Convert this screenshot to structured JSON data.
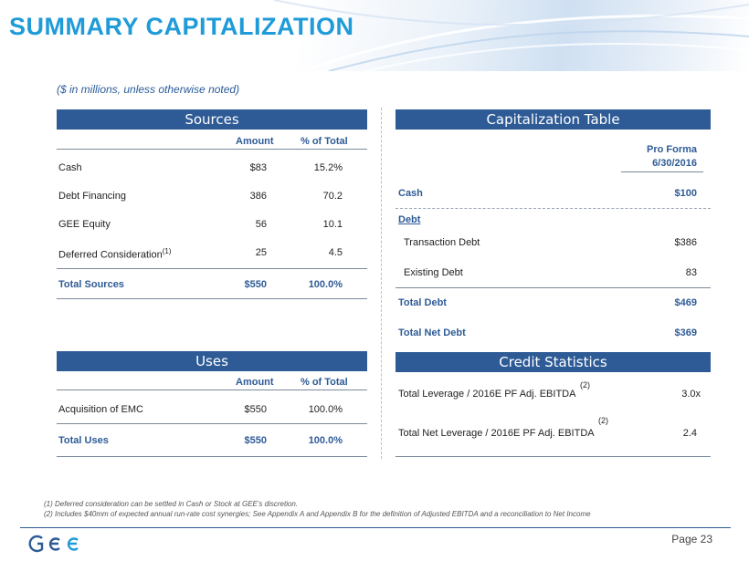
{
  "header": {
    "title": "SUMMARY CAPITALIZATION",
    "subtitle": "($ in millions, unless otherwise noted)"
  },
  "sources": {
    "title": "Sources",
    "col_amount": "Amount",
    "col_pct": "% of Total",
    "rows": [
      {
        "label": "Cash",
        "note": "",
        "amount": "$83",
        "pct": "15.2%"
      },
      {
        "label": "Debt Financing",
        "note": "",
        "amount": "386",
        "pct": "70.2"
      },
      {
        "label": "GEE Equity",
        "note": "",
        "amount": "56",
        "pct": "10.1"
      },
      {
        "label": "Deferred Consideration",
        "note": "(1)",
        "amount": "25",
        "pct": "4.5"
      }
    ],
    "total": {
      "label": "Total Sources",
      "amount": "$550",
      "pct": "100.0%"
    }
  },
  "uses": {
    "title": "Uses",
    "col_amount": "Amount",
    "col_pct": "% of Total",
    "rows": [
      {
        "label": "Acquisition of EMC",
        "amount": "$550",
        "pct": "100.0%"
      }
    ],
    "total": {
      "label": "Total Uses",
      "amount": "$550",
      "pct": "100.0%"
    }
  },
  "capitalization": {
    "title": "Capitalization Table",
    "col_line1": "Pro Forma",
    "col_line2": "6/30/2016",
    "cash_label": "Cash",
    "cash_value": "$100",
    "debt_label": "Debt",
    "rows": [
      {
        "label": "Transaction Debt",
        "value": "$386"
      },
      {
        "label": "Existing Debt",
        "value": "83"
      }
    ],
    "total_debt_label": "Total Debt",
    "total_debt_value": "$469",
    "total_net_debt_label": "Total Net Debt",
    "total_net_debt_value": "$369"
  },
  "credit": {
    "title": "Credit Statistics",
    "rows": [
      {
        "label": "Total Leverage / 2016E PF Adj. EBITDA",
        "note": "(2)",
        "value": "3.0x"
      },
      {
        "label": "Total Net Leverage / 2016E PF Adj. EBITDA",
        "note": "(2)",
        "value": "2.4"
      }
    ]
  },
  "footnotes": [
    "(1) Deferred  consideration can be settled in Cash or Stock at GEE's discretion.",
    "(2) Includes  $40mm of expected  annual run-rate cost synergies;  See Appendix A and Appendix  B for the definition  of Adjusted EBITDA  and a reconciliation  to Net Income"
  ],
  "footer": {
    "page_label": "Page 23"
  },
  "colors": {
    "title": "#1f9bd8",
    "panel_header": "#2e5b96",
    "accent_text": "#2e5b96"
  }
}
